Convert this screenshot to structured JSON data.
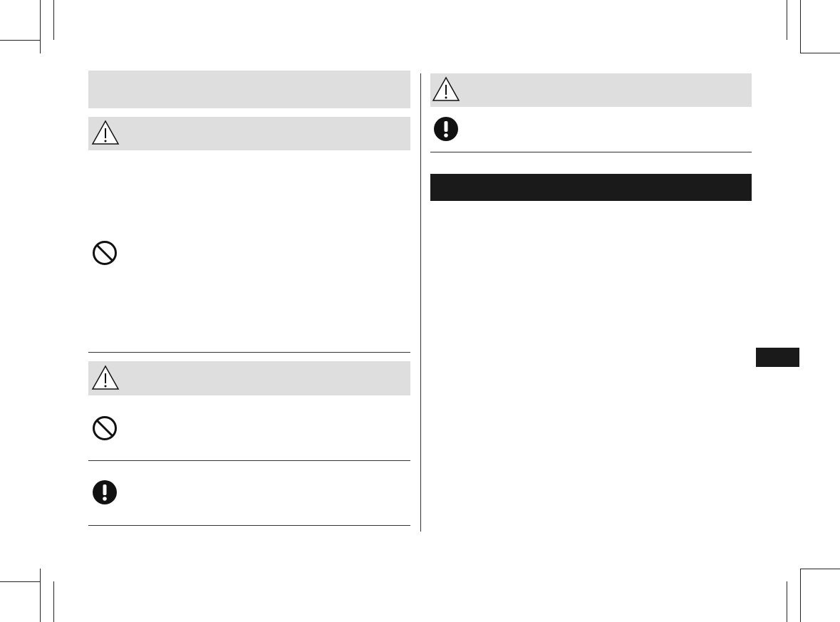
{
  "colors": {
    "panel": "#dedede",
    "bar": "#1a1a1a",
    "rule": "#333333"
  },
  "icons": [
    "warning-triangle-icon",
    "prohibition-icon",
    "mandatory-action-icon"
  ]
}
